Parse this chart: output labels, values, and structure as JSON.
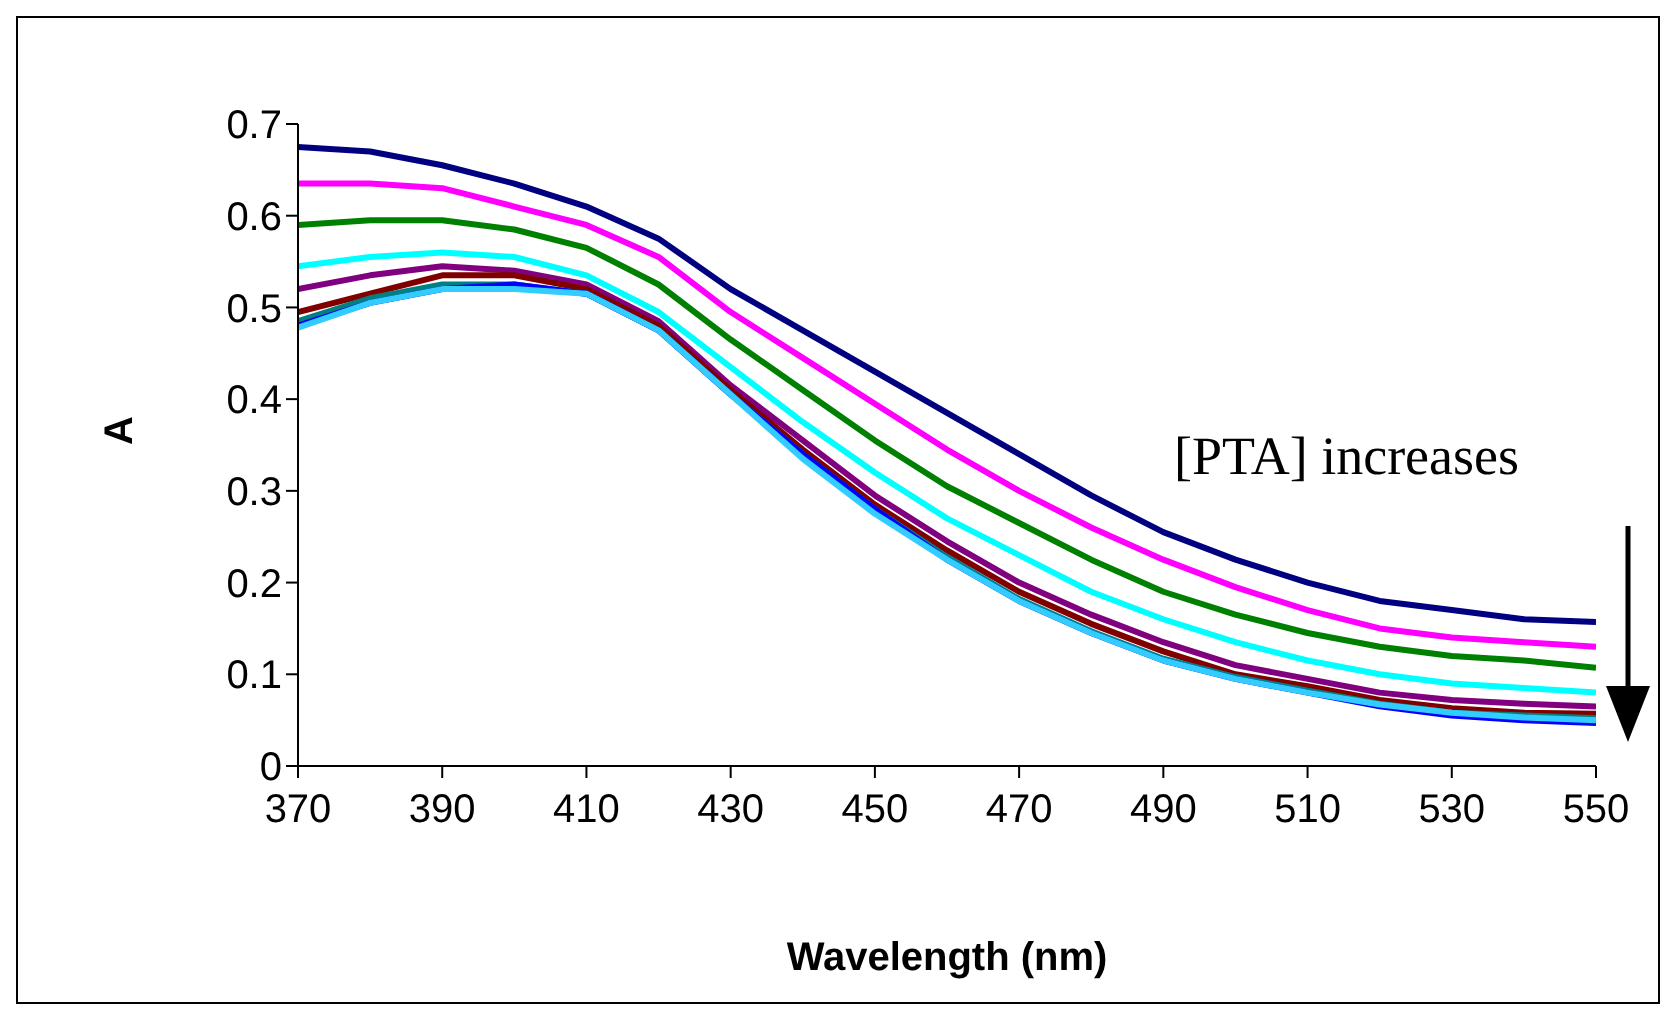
{
  "chart_data": {
    "type": "line",
    "xlabel": "Wavelength  (nm)",
    "ylabel": "A",
    "annotations": [
      "[PTA] increases"
    ],
    "x": [
      370,
      380,
      390,
      400,
      410,
      420,
      430,
      440,
      450,
      460,
      470,
      480,
      490,
      500,
      510,
      520,
      530,
      540,
      550
    ],
    "xlim": [
      370,
      550
    ],
    "xticks": [
      370,
      390,
      410,
      430,
      450,
      470,
      490,
      510,
      530,
      550
    ],
    "ylim": [
      0,
      0.7
    ],
    "yticks": [
      0,
      0.1,
      0.2,
      0.3,
      0.4,
      0.5,
      0.6,
      0.7
    ],
    "grid": false,
    "legend": false,
    "marker": "none",
    "line_style": "solid",
    "series": [
      {
        "color": "#000080",
        "values": [
          0.675,
          0.67,
          0.655,
          0.635,
          0.61,
          0.575,
          0.52,
          0.475,
          0.43,
          0.385,
          0.34,
          0.295,
          0.255,
          0.225,
          0.2,
          0.18,
          0.17,
          0.16,
          0.157
        ]
      },
      {
        "color": "#ff00ff",
        "values": [
          0.635,
          0.635,
          0.63,
          0.61,
          0.59,
          0.555,
          0.495,
          0.445,
          0.395,
          0.345,
          0.3,
          0.26,
          0.225,
          0.195,
          0.17,
          0.15,
          0.14,
          0.135,
          0.13
        ]
      },
      {
        "color": "#008000",
        "values": [
          0.59,
          0.595,
          0.595,
          0.585,
          0.565,
          0.525,
          0.465,
          0.41,
          0.355,
          0.305,
          0.265,
          0.225,
          0.19,
          0.165,
          0.145,
          0.13,
          0.12,
          0.115,
          0.107
        ]
      },
      {
        "color": "#00ffff",
        "values": [
          0.545,
          0.555,
          0.56,
          0.555,
          0.535,
          0.495,
          0.435,
          0.375,
          0.32,
          0.27,
          0.23,
          0.19,
          0.16,
          0.135,
          0.115,
          0.1,
          0.09,
          0.085,
          0.08
        ]
      },
      {
        "color": "#800080",
        "values": [
          0.52,
          0.535,
          0.545,
          0.54,
          0.525,
          0.485,
          0.415,
          0.355,
          0.295,
          0.245,
          0.2,
          0.165,
          0.135,
          0.11,
          0.095,
          0.08,
          0.072,
          0.068,
          0.065
        ]
      },
      {
        "color": "#800000",
        "values": [
          0.495,
          0.515,
          0.535,
          0.535,
          0.52,
          0.48,
          0.41,
          0.345,
          0.285,
          0.235,
          0.19,
          0.155,
          0.125,
          0.1,
          0.087,
          0.072,
          0.063,
          0.058,
          0.057
        ]
      },
      {
        "color": "#008080",
        "values": [
          0.485,
          0.51,
          0.525,
          0.525,
          0.515,
          0.475,
          0.405,
          0.34,
          0.28,
          0.228,
          0.182,
          0.147,
          0.117,
          0.097,
          0.082,
          0.068,
          0.058,
          0.055,
          0.052
        ]
      },
      {
        "color": "#0000ff",
        "values": [
          0.48,
          0.505,
          0.52,
          0.525,
          0.515,
          0.475,
          0.405,
          0.34,
          0.28,
          0.225,
          0.18,
          0.145,
          0.115,
          0.095,
          0.08,
          0.065,
          0.055,
          0.05,
          0.047
        ]
      },
      {
        "color": "#33ccff",
        "values": [
          0.478,
          0.505,
          0.52,
          0.52,
          0.515,
          0.475,
          0.405,
          0.335,
          0.275,
          0.225,
          0.18,
          0.145,
          0.115,
          0.095,
          0.08,
          0.067,
          0.058,
          0.053,
          0.05
        ]
      }
    ]
  }
}
